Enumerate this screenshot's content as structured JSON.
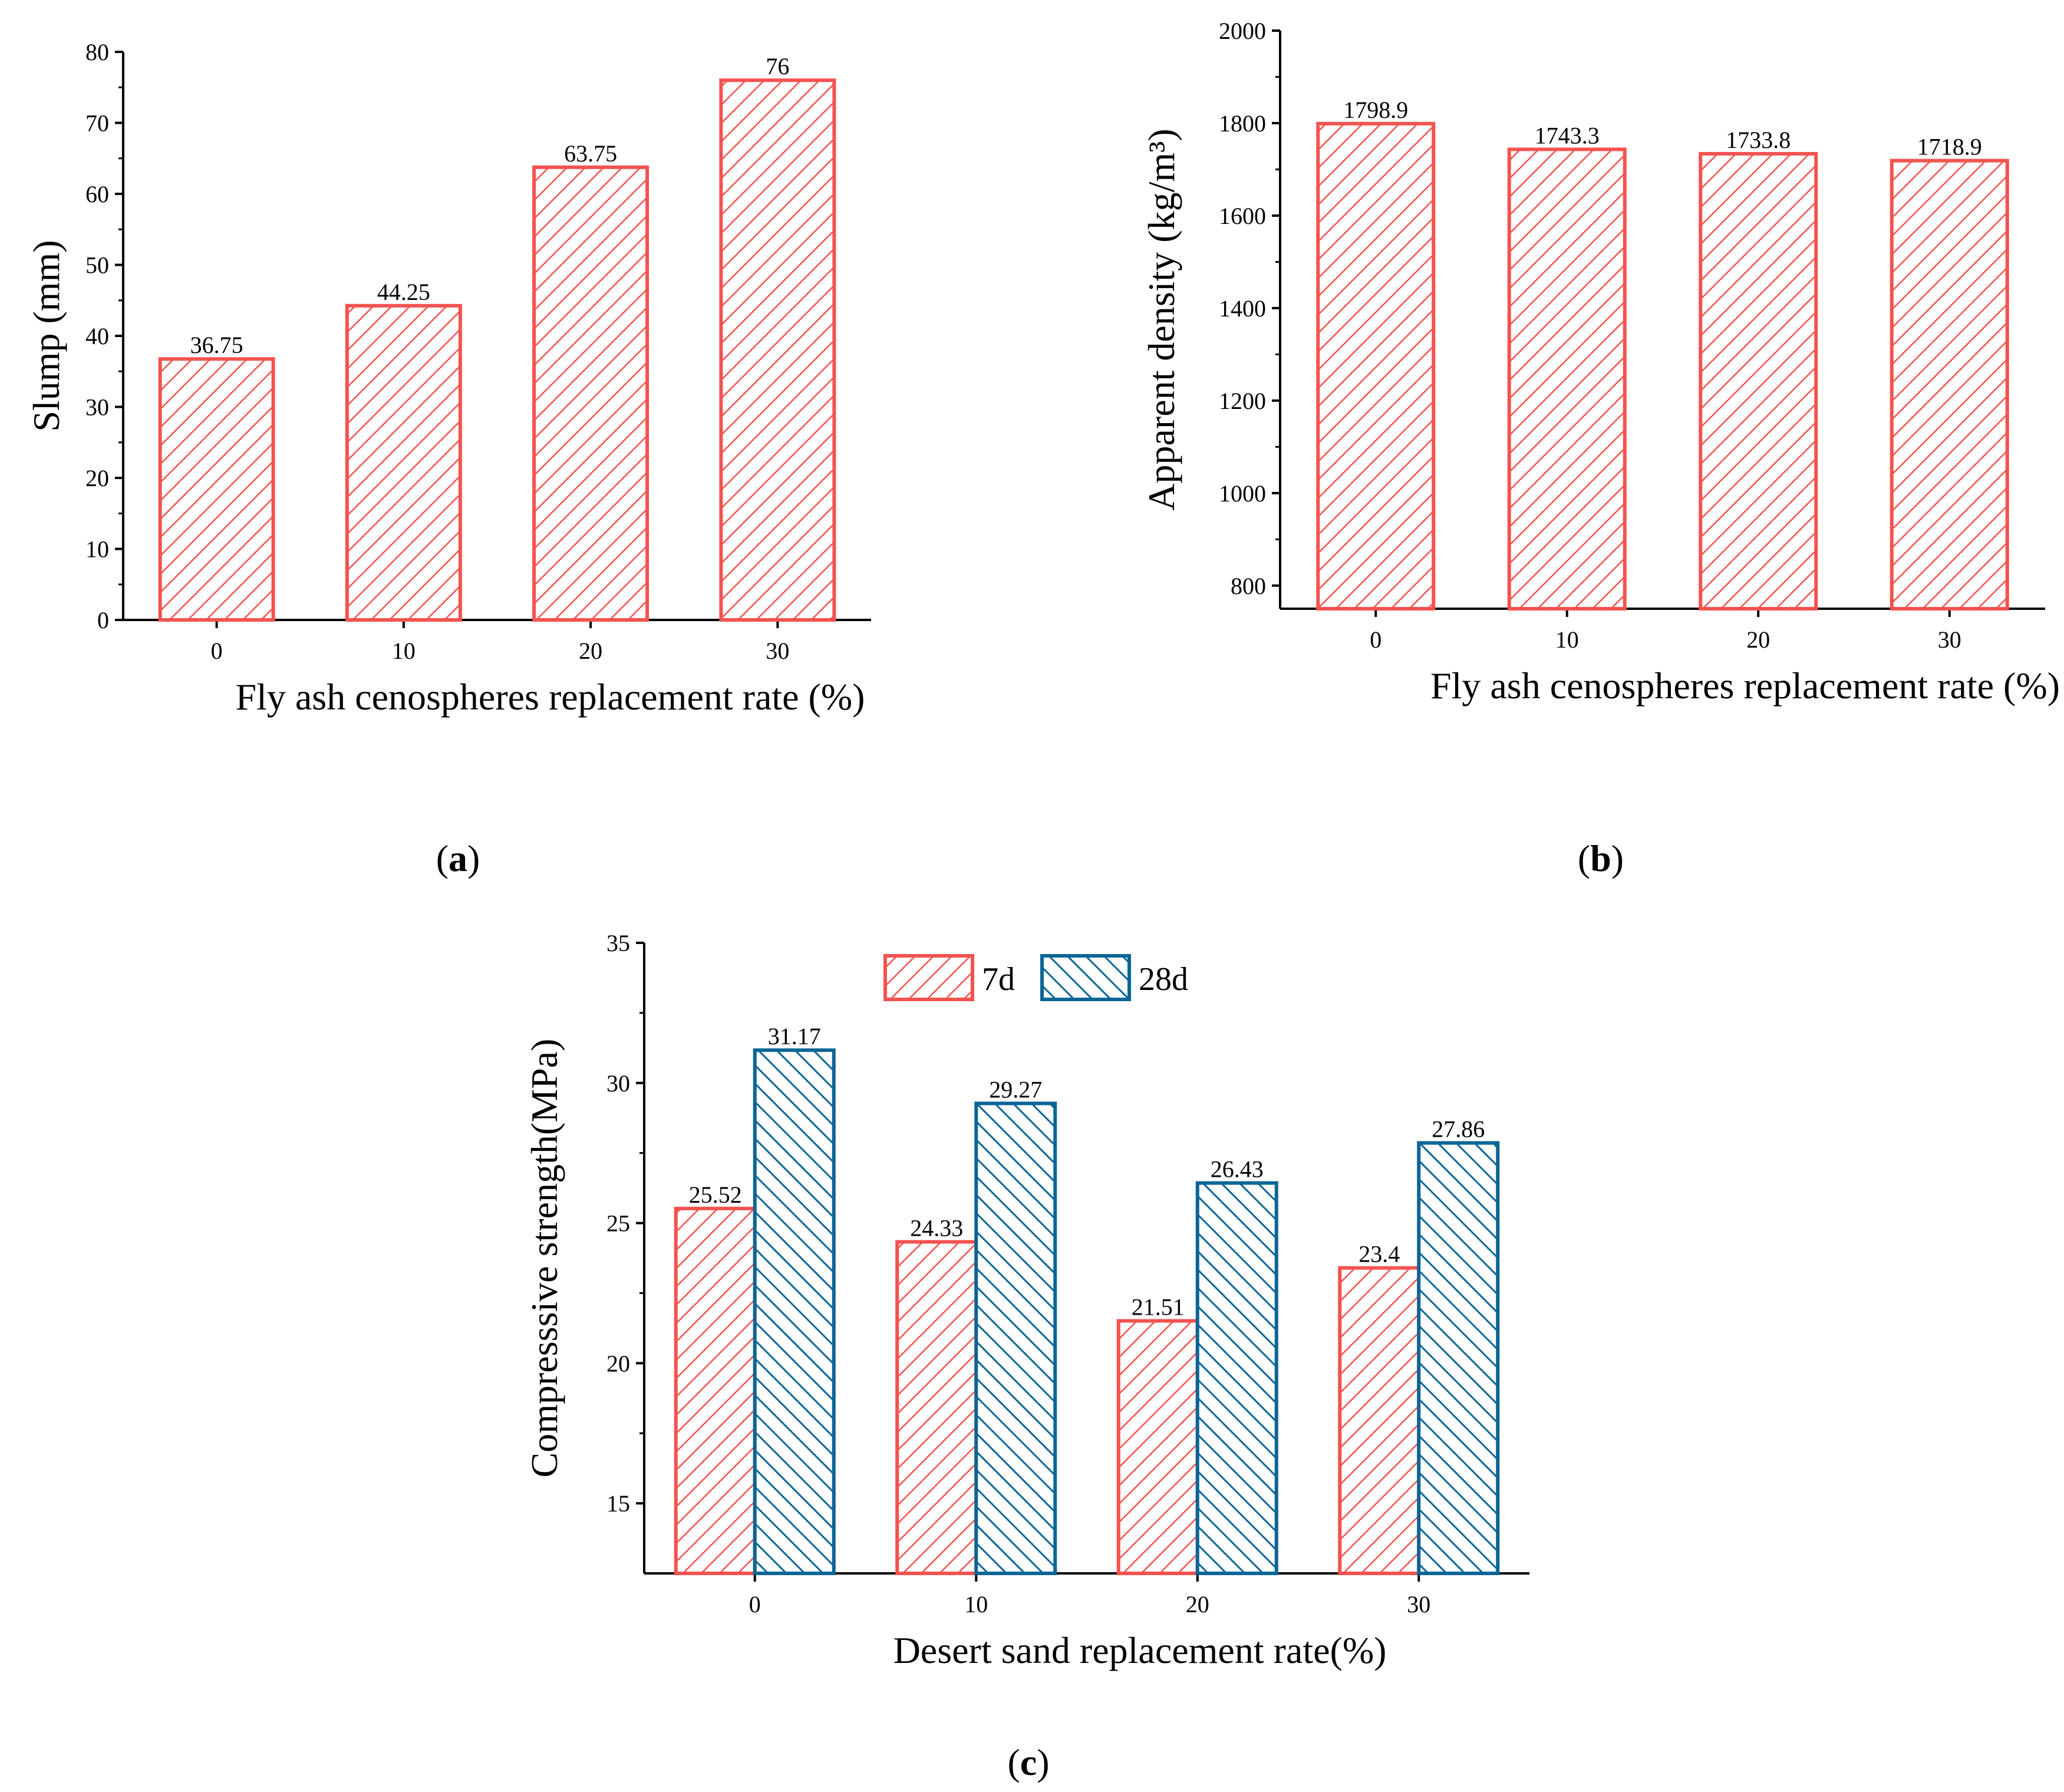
{
  "colors": {
    "red": "#f4524f",
    "red_hatch": "#f4524f",
    "blue": "#0a6596",
    "axis": "#000000"
  },
  "chart_data": [
    {
      "type": "bar",
      "categories": [
        "0",
        "10",
        "20",
        "30"
      ],
      "values": [
        36.75,
        44.25,
        63.75,
        76
      ],
      "value_labels": [
        "36.75",
        "44.25",
        "63.75",
        "76"
      ],
      "xlabel": "Fly ash cenospheres replacement rate (%)",
      "ylabel": "Slump (mm)",
      "ylim": [
        0,
        80
      ],
      "yticks": [
        0,
        10,
        20,
        30,
        40,
        50,
        60,
        70,
        80
      ],
      "ytick_labels": [
        "0",
        "10",
        "20",
        "30",
        "40",
        "50",
        "60",
        "70",
        "80"
      ],
      "panel_label": "a",
      "fill": "hatched red"
    },
    {
      "type": "bar",
      "categories": [
        "0",
        "10",
        "20",
        "30"
      ],
      "values": [
        1798.9,
        1743.3,
        1733.8,
        1718.9
      ],
      "value_labels": [
        "1798.9",
        "1743.3",
        "1733.8",
        "1718.9"
      ],
      "xlabel": "Fly ash cenospheres replacement rate (%)",
      "ylabel": "Apparent density (kg/m³)",
      "ylim": [
        750,
        2000
      ],
      "yticks": [
        800,
        1000,
        1200,
        1400,
        1600,
        1800,
        2000
      ],
      "ytick_labels": [
        "800",
        "1000",
        "1200",
        "1400",
        "1600",
        "1800",
        "2000"
      ],
      "panel_label": "b",
      "fill": "hatched red"
    },
    {
      "type": "bar",
      "categories": [
        "0",
        "10",
        "20",
        "30"
      ],
      "series": [
        {
          "name": "7d",
          "values": [
            25.52,
            24.33,
            21.51,
            23.4
          ],
          "value_labels": [
            "25.52",
            "24.33",
            "21.51",
            "23.4"
          ]
        },
        {
          "name": "28d",
          "values": [
            31.17,
            29.27,
            26.43,
            27.86
          ],
          "value_labels": [
            "31.17",
            "29.27",
            "26.43",
            "27.86"
          ]
        }
      ],
      "xlabel": "Desert sand replacement rate(%)",
      "ylabel": "Compresssive strength(MPa)",
      "ylim": [
        12.5,
        35
      ],
      "yticks": [
        15,
        20,
        25,
        30,
        35
      ],
      "ytick_labels": [
        "15",
        "20",
        "25",
        "30",
        "35"
      ],
      "legend": "top-center",
      "panel_label": "c"
    }
  ]
}
